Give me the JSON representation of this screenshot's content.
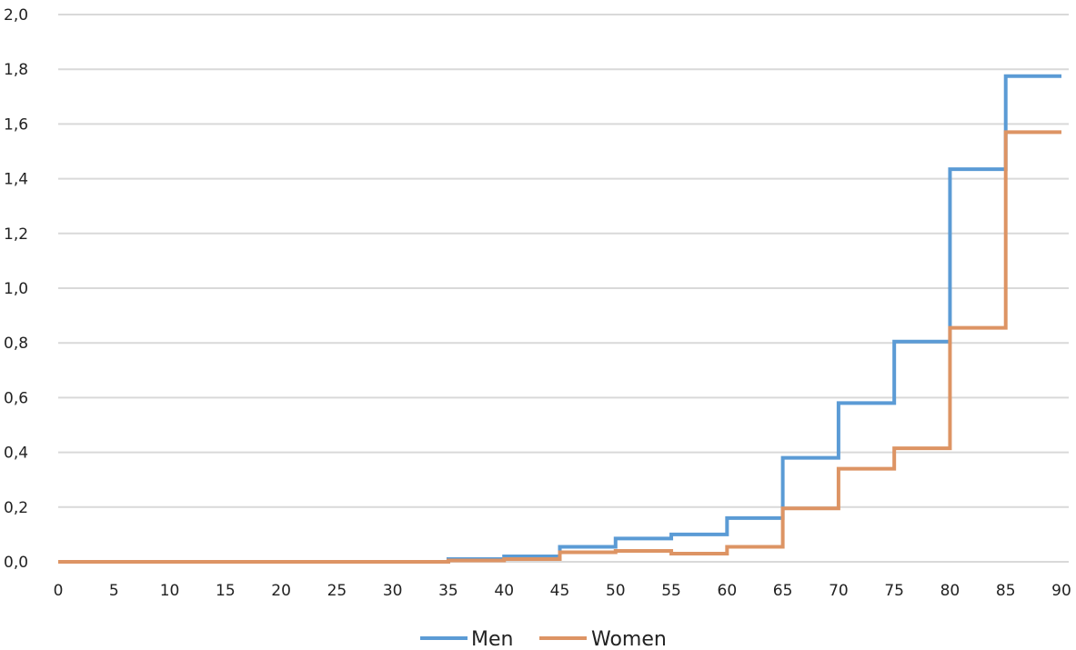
{
  "chart_data": {
    "type": "line",
    "step": true,
    "x": [
      0,
      5,
      10,
      15,
      20,
      25,
      30,
      35,
      40,
      45,
      50,
      55,
      60,
      65,
      70,
      75,
      80,
      85,
      90
    ],
    "x_ticks": [
      "0",
      "5",
      "10",
      "15",
      "20",
      "25",
      "30",
      "35",
      "40",
      "45",
      "50",
      "55",
      "60",
      "65",
      "70",
      "75",
      "80",
      "85",
      "90"
    ],
    "y_ticks": [
      "0,0",
      "0,2",
      "0,4",
      "0,6",
      "0,8",
      "1,0",
      "1,2",
      "1,4",
      "1,6",
      "1,8",
      "2,0"
    ],
    "ylim": [
      0,
      2.0
    ],
    "xlim": [
      0,
      90
    ],
    "grid": true,
    "legend_position": "bottom",
    "series": [
      {
        "name": "Men",
        "color": "#5b9bd5",
        "values": [
          0,
          0,
          0,
          0,
          0,
          0,
          0,
          0.01,
          0.02,
          0.055,
          0.085,
          0.1,
          0.16,
          0.38,
          0.58,
          0.805,
          1.435,
          1.775,
          1.775
        ]
      },
      {
        "name": "Women",
        "color": "#dd9464",
        "values": [
          0,
          0,
          0,
          0,
          0,
          0,
          0,
          0.005,
          0.01,
          0.035,
          0.04,
          0.03,
          0.055,
          0.195,
          0.34,
          0.415,
          0.855,
          1.57,
          1.57
        ]
      }
    ]
  }
}
